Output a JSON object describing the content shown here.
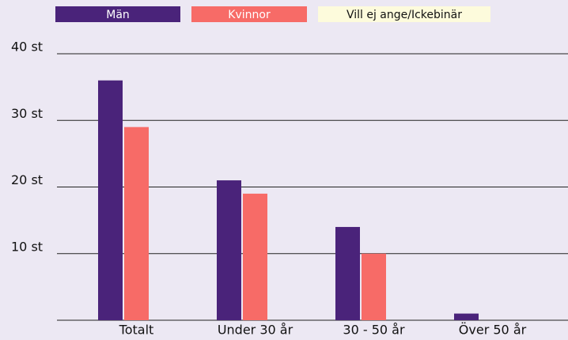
{
  "chart_data": {
    "type": "bar",
    "categories": [
      "Totalt",
      "Under 30 år",
      "30 - 50  år",
      "Över 50  år"
    ],
    "series": [
      {
        "name": "Män",
        "color": "#4a237a",
        "text_color": "#ffffff",
        "values": [
          36,
          21,
          14,
          1
        ]
      },
      {
        "name": "Kvinnor",
        "color": "#f76b67",
        "text_color": "#ffffff",
        "values": [
          29,
          19,
          10,
          0
        ]
      },
      {
        "name": "Vill ej ange/Ickebinär",
        "color": "#fdfbdc",
        "text_color": "#111111",
        "values": [
          0,
          0,
          0,
          0
        ]
      }
    ],
    "ylim": [
      0,
      40
    ],
    "yticks": [
      {
        "value": 10,
        "label": "10 st"
      },
      {
        "value": 20,
        "label": "20 st"
      },
      {
        "value": 30,
        "label": "30 st"
      },
      {
        "value": 40,
        "label": "40 st"
      }
    ],
    "grid": true,
    "legend": "top"
  }
}
